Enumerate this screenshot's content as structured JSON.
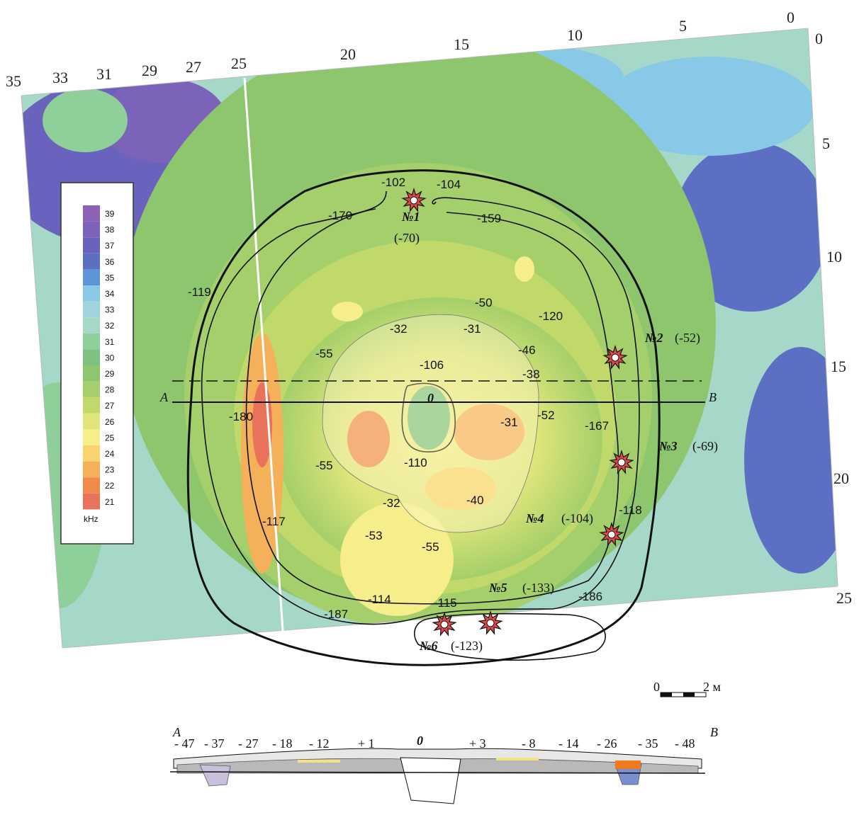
{
  "axes": {
    "top": [
      "35",
      "33",
      "31",
      "29",
      "27",
      "25",
      "20",
      "15",
      "10",
      "5",
      "0"
    ],
    "right": [
      "0",
      "5",
      "10",
      "15",
      "20",
      "25"
    ]
  },
  "legend": {
    "unit": "kHz",
    "levels": [
      {
        "v": "39",
        "c": "#8c63b5"
      },
      {
        "v": "38",
        "c": "#7a63b8"
      },
      {
        "v": "37",
        "c": "#6a63bd"
      },
      {
        "v": "36",
        "c": "#5d6fc2"
      },
      {
        "v": "35",
        "c": "#5d94d8"
      },
      {
        "v": "34",
        "c": "#88c9e8"
      },
      {
        "v": "33",
        "c": "#9fd4de"
      },
      {
        "v": "32",
        "c": "#a6d8c9"
      },
      {
        "v": "31",
        "c": "#8fcf9a"
      },
      {
        "v": "30",
        "c": "#7dc27f"
      },
      {
        "v": "29",
        "c": "#8ec66e"
      },
      {
        "v": "28",
        "c": "#a4cf6a"
      },
      {
        "v": "27",
        "c": "#c0d96a"
      },
      {
        "v": "26",
        "c": "#dfe57a"
      },
      {
        "v": "25",
        "c": "#f5ee8a"
      },
      {
        "v": "24",
        "c": "#f9d36b"
      },
      {
        "v": "23",
        "c": "#f5b15a"
      },
      {
        "v": "22",
        "c": "#f08a4b"
      },
      {
        "v": "21",
        "c": "#e8735a"
      }
    ]
  },
  "section_line": {
    "start": "A",
    "end": "B",
    "center": "0"
  },
  "labels": [
    "-102",
    "-104",
    "-170",
    "-159",
    "-119",
    "-120",
    "-50",
    "-32",
    "-31",
    "-46",
    "-38",
    "-55",
    "-106",
    "-180",
    "-52",
    "-167",
    "-31",
    "-55",
    "-110",
    "-32",
    "-40",
    "-53",
    "-55",
    "-117",
    "-118",
    "-114",
    "-115",
    "-187",
    "-186"
  ],
  "finds": [
    {
      "num": "№1",
      "val": "(-70)"
    },
    {
      "num": "№2",
      "val": "(-52)"
    },
    {
      "num": "№3",
      "val": "(-69)"
    },
    {
      "num": "№4",
      "val": "(-104)"
    },
    {
      "num": "№5",
      "val": "(-133)"
    },
    {
      "num": "№6",
      "val": "(-123)"
    }
  ],
  "scale": {
    "start": "0",
    "end": "2 м"
  },
  "profile": {
    "start": "A",
    "end": "B",
    "center": "0",
    "depths": [
      "- 47",
      "- 37",
      "- 27",
      "- 18",
      "- 12",
      "+ 1",
      "0",
      "+ 3",
      "- 8",
      "- 14",
      "- 26",
      "- 35",
      "- 48"
    ]
  }
}
